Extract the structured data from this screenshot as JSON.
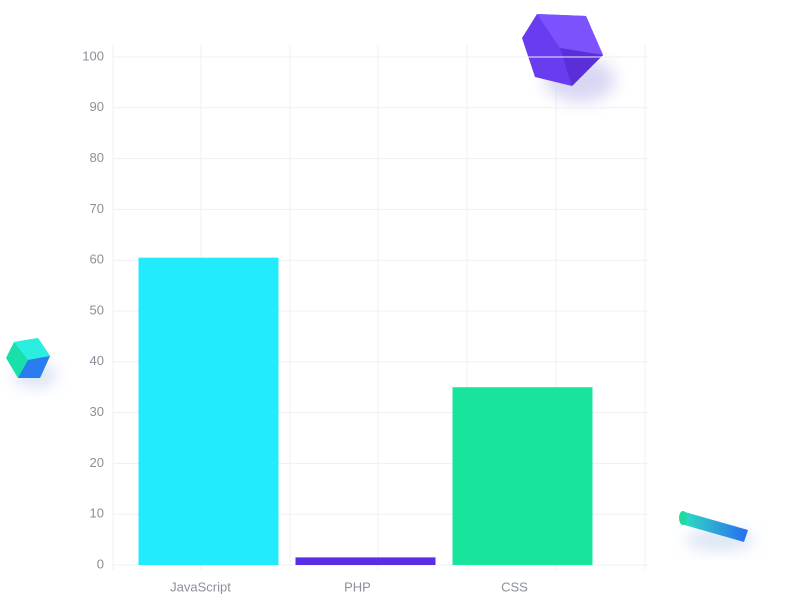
{
  "chart_data": {
    "type": "bar",
    "categories": [
      "JavaScript",
      "PHP",
      "CSS"
    ],
    "values": [
      60.5,
      1.5,
      35
    ],
    "colors": [
      "#22ebfe",
      "#5c2de6",
      "#19e49c"
    ],
    "ylim": [
      0,
      100
    ],
    "yticks": [
      0,
      10,
      20,
      30,
      40,
      50,
      60,
      70,
      80,
      90,
      100
    ],
    "grid": true
  }
}
